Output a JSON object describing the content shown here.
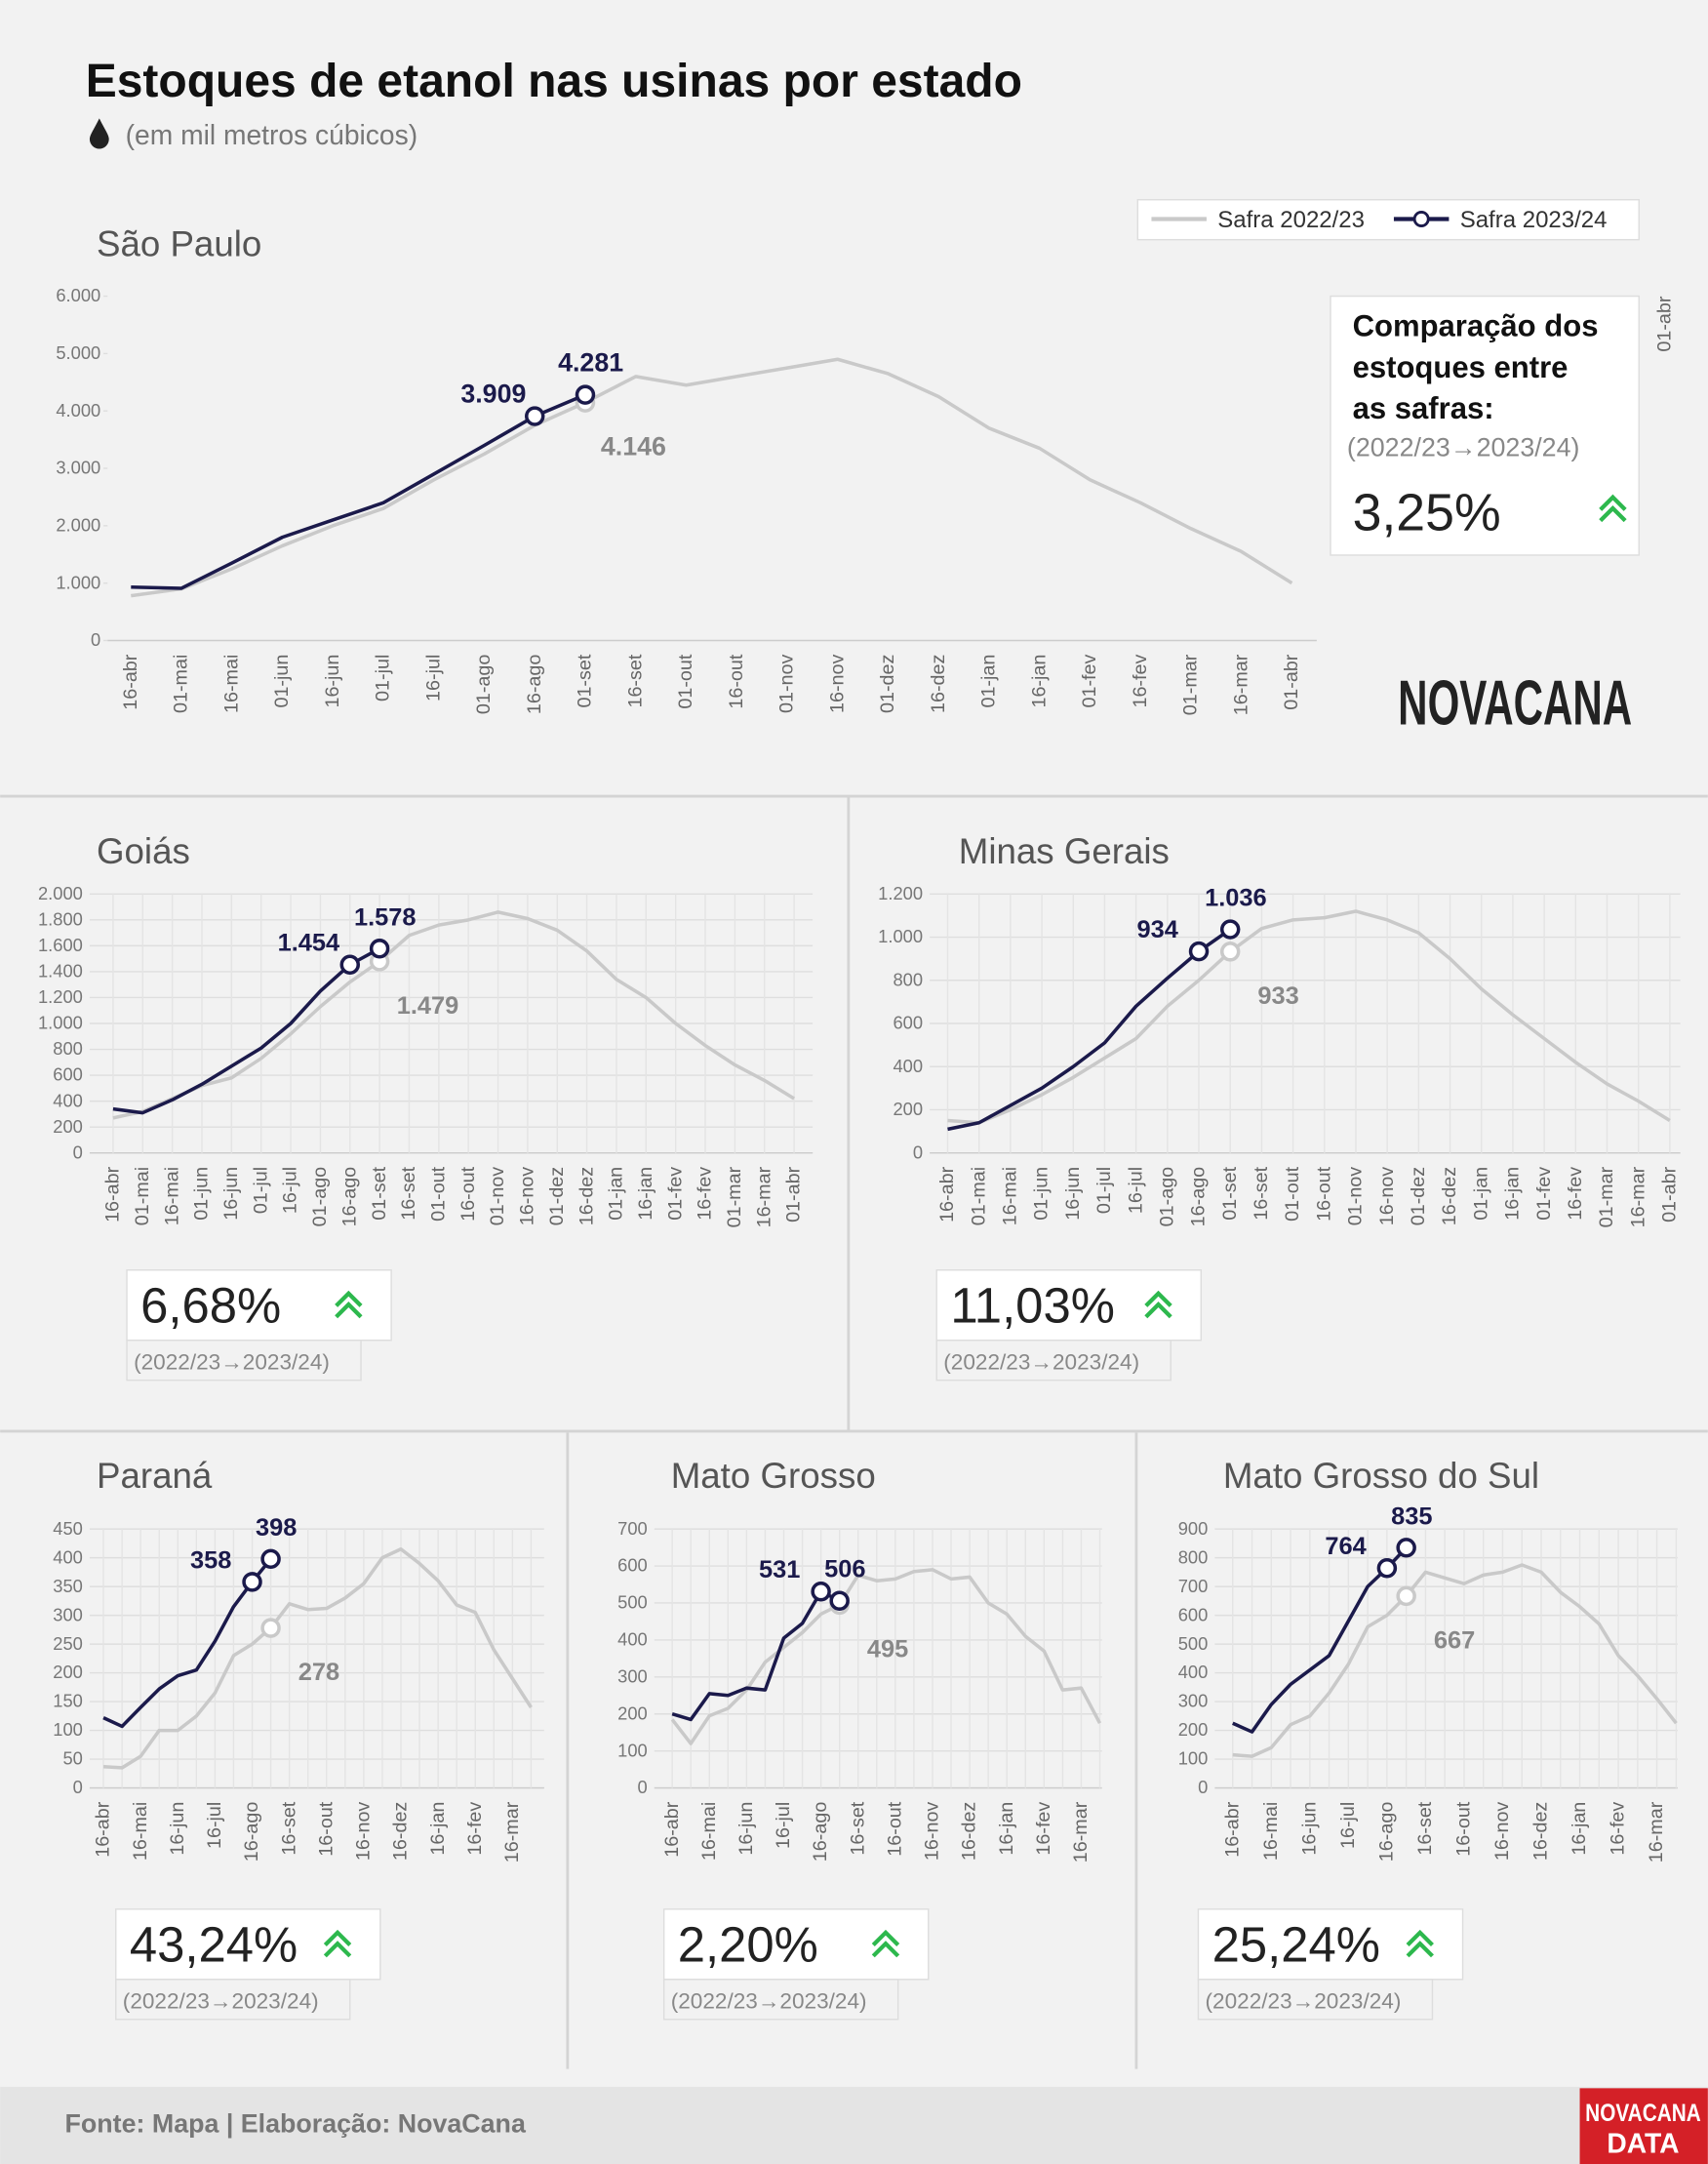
{
  "title": "Estoques de etanol nas usinas por estado",
  "subtitle": "(em mil metros cúbicos)",
  "logo": "NOVACANA",
  "badge": [
    "NOVACANA",
    "DATA"
  ],
  "footer": "Fonte: Mapa | Elaboração: NovaCana",
  "chart_data": [
    {
      "type": "line",
      "title": "São Paulo",
      "comparison_title": [
        "Comparação dos",
        "estoques entre",
        "as safras:"
      ],
      "period": "(2022/23→2023/24)",
      "change": {
        "value": 3.25,
        "label": "3,25%"
      },
      "side_label": "01-abr",
      "grid": false,
      "categories": [
        "16-abr",
        "01-mai",
        "16-mai",
        "01-jun",
        "16-jun",
        "01-jul",
        "16-jul",
        "01-ago",
        "16-ago",
        "01-set",
        "16-set",
        "01-out",
        "16-out",
        "01-nov",
        "16-nov",
        "01-dez",
        "16-dez",
        "01-jan",
        "16-jan",
        "01-fev",
        "16-fev",
        "01-mar",
        "16-mar",
        "01-abr"
      ],
      "ylim": [
        0,
        6000
      ],
      "yticks": [
        0,
        {
          "value": 1000,
          "label": "1.000"
        },
        {
          "value": 2000,
          "label": "2.000"
        },
        {
          "value": 3000,
          "label": "3.000"
        },
        {
          "value": 4000,
          "label": "4.000"
        },
        {
          "value": 5000,
          "label": "5.000"
        },
        {
          "value": 6000,
          "label": "6.000"
        }
      ],
      "series": [
        {
          "name": "Safra 2022/23",
          "color": "#c9c9c9",
          "values": [
            780,
            900,
            1250,
            1650,
            2000,
            2300,
            2800,
            3250,
            3750,
            4146,
            4600,
            4450,
            4600,
            4750,
            4900,
            4650,
            4250,
            3700,
            3350,
            2800,
            2400,
            1950,
            1550,
            1000
          ],
          "value_labels": [
            null,
            null,
            null,
            null,
            null,
            null,
            null,
            null,
            null,
            "4.146",
            null,
            null,
            null,
            null,
            null,
            null,
            null,
            null,
            null,
            null,
            null,
            null,
            null,
            null
          ]
        },
        {
          "name": "Safra 2023/24",
          "color": "#1b1a4b",
          "values": [
            930,
            910,
            1350,
            1800,
            2100,
            2400,
            2900,
            3400,
            3909,
            4281,
            null,
            null,
            null,
            null,
            null,
            null,
            null,
            null,
            null,
            null,
            null,
            null,
            null,
            null
          ],
          "value_labels": [
            null,
            null,
            null,
            null,
            null,
            null,
            null,
            null,
            "3.909",
            "4.281",
            null,
            null,
            null,
            null,
            null,
            null,
            null,
            null,
            null,
            null,
            null,
            null,
            null,
            null
          ]
        }
      ]
    },
    {
      "type": "line",
      "title": "Goiás",
      "period": "(2022/23→2023/24)",
      "change": {
        "value": 6.68,
        "label": "6,68%"
      },
      "grid": true,
      "categories": [
        "16-abr",
        "01-mai",
        "16-mai",
        "01-jun",
        "16-jun",
        "01-jul",
        "16-jul",
        "01-ago",
        "16-ago",
        "01-set",
        "16-set",
        "01-out",
        "16-out",
        "01-nov",
        "16-nov",
        "01-dez",
        "16-dez",
        "01-jan",
        "16-jan",
        "01-fev",
        "16-fev",
        "01-mar",
        "16-mar",
        "01-abr"
      ],
      "ylim": [
        0,
        2000
      ],
      "yticks": [
        0,
        200,
        400,
        600,
        800,
        {
          "value": 1000,
          "label": "1.000"
        },
        {
          "value": 1200,
          "label": "1.200"
        },
        {
          "value": 1400,
          "label": "1.400"
        },
        {
          "value": 1600,
          "label": "1.600"
        },
        {
          "value": 1800,
          "label": "1.800"
        },
        {
          "value": 2000,
          "label": "2.000"
        }
      ],
      "series": [
        {
          "name": "Safra 2022/23",
          "color": "#c9c9c9",
          "values": [
            270,
            320,
            420,
            520,
            580,
            730,
            920,
            1130,
            1320,
            1479,
            1680,
            1760,
            1800,
            1860,
            1810,
            1720,
            1560,
            1340,
            1200,
            1000,
            830,
            680,
            560,
            420
          ],
          "value_labels": [
            null,
            null,
            null,
            null,
            null,
            null,
            null,
            null,
            null,
            "1.479",
            null,
            null,
            null,
            null,
            null,
            null,
            null,
            null,
            null,
            null,
            null,
            null,
            null,
            null
          ]
        },
        {
          "name": "Safra 2023/24",
          "color": "#1b1a4b",
          "values": [
            340,
            310,
            410,
            530,
            670,
            810,
            1000,
            1250,
            1454,
            1578,
            null,
            null,
            null,
            null,
            null,
            null,
            null,
            null,
            null,
            null,
            null,
            null,
            null,
            null
          ],
          "value_labels": [
            null,
            null,
            null,
            null,
            null,
            null,
            null,
            null,
            "1.454",
            "1.578",
            null,
            null,
            null,
            null,
            null,
            null,
            null,
            null,
            null,
            null,
            null,
            null,
            null,
            null
          ]
        }
      ]
    },
    {
      "type": "line",
      "title": "Minas Gerais",
      "period": "(2022/23→2023/24)",
      "change": {
        "value": 11.03,
        "label": "11,03%"
      },
      "grid": true,
      "categories": [
        "16-abr",
        "01-mai",
        "16-mai",
        "01-jun",
        "16-jun",
        "01-jul",
        "16-jul",
        "01-ago",
        "16-ago",
        "01-set",
        "16-set",
        "01-out",
        "16-out",
        "01-nov",
        "16-nov",
        "01-dez",
        "16-dez",
        "01-jan",
        "16-jan",
        "01-fev",
        "16-fev",
        "01-mar",
        "16-mar",
        "01-abr"
      ],
      "ylim": [
        0,
        1200
      ],
      "yticks": [
        0,
        200,
        400,
        600,
        800,
        {
          "value": 1000,
          "label": "1.000"
        },
        {
          "value": 1200,
          "label": "1.200"
        }
      ],
      "series": [
        {
          "name": "Safra 2022/23",
          "color": "#c9c9c9",
          "values": [
            150,
            140,
            200,
            270,
            350,
            440,
            530,
            680,
            800,
            933,
            1040,
            1080,
            1090,
            1120,
            1080,
            1020,
            900,
            760,
            640,
            530,
            420,
            320,
            240,
            150
          ],
          "value_labels": [
            null,
            null,
            null,
            null,
            null,
            null,
            null,
            null,
            null,
            "933",
            null,
            null,
            null,
            null,
            null,
            null,
            null,
            null,
            null,
            null,
            null,
            null,
            null,
            null
          ]
        },
        {
          "name": "Safra 2023/24",
          "color": "#1b1a4b",
          "values": [
            110,
            140,
            220,
            300,
            400,
            510,
            680,
            810,
            934,
            1036,
            null,
            null,
            null,
            null,
            null,
            null,
            null,
            null,
            null,
            null,
            null,
            null,
            null,
            null
          ],
          "value_labels": [
            null,
            null,
            null,
            null,
            null,
            null,
            null,
            null,
            "934",
            "1.036",
            null,
            null,
            null,
            null,
            null,
            null,
            null,
            null,
            null,
            null,
            null,
            null,
            null,
            null
          ]
        }
      ]
    },
    {
      "type": "line",
      "title": "Paraná",
      "period": "(2022/23→2023/24)",
      "change": {
        "value": 43.24,
        "label": "43,24%"
      },
      "grid": true,
      "categories": [
        "16-abr",
        null,
        "16-mai",
        null,
        "16-jun",
        null,
        "16-jul",
        null,
        "16-ago",
        null,
        "16-set",
        null,
        "16-out",
        null,
        "16-nov",
        null,
        "16-dez",
        null,
        "16-jan",
        null,
        "16-fev",
        null,
        "16-mar",
        null
      ],
      "ylim": [
        0,
        450
      ],
      "yticks": [
        0,
        50,
        100,
        150,
        200,
        250,
        300,
        350,
        400,
        450
      ],
      "series": [
        {
          "name": "Safra 2022/23",
          "color": "#c9c9c9",
          "values": [
            37,
            35,
            55,
            100,
            100,
            125,
            165,
            230,
            250,
            278,
            320,
            310,
            312,
            330,
            355,
            400,
            415,
            390,
            360,
            318,
            305,
            240,
            190,
            140
          ],
          "value_labels": [
            null,
            null,
            null,
            null,
            null,
            null,
            null,
            null,
            null,
            "278",
            null,
            null,
            null,
            null,
            null,
            null,
            null,
            null,
            null,
            null,
            null,
            null,
            null,
            null
          ]
        },
        {
          "name": "Safra 2023/24",
          "color": "#1b1a4b",
          "values": [
            122,
            107,
            140,
            172,
            195,
            205,
            255,
            315,
            358,
            398,
            null,
            null,
            null,
            null,
            null,
            null,
            null,
            null,
            null,
            null,
            null,
            null,
            null,
            null
          ],
          "value_labels": [
            null,
            null,
            null,
            null,
            null,
            null,
            null,
            null,
            "358",
            "398",
            null,
            null,
            null,
            null,
            null,
            null,
            null,
            null,
            null,
            null,
            null,
            null,
            null,
            null
          ]
        }
      ]
    },
    {
      "type": "line",
      "title": "Mato Grosso",
      "period": "(2022/23→2023/24)",
      "change": {
        "value": 2.2,
        "label": "2,20%"
      },
      "grid": true,
      "categories": [
        "16-abr",
        null,
        "16-mai",
        null,
        "16-jun",
        null,
        "16-jul",
        null,
        "16-ago",
        null,
        "16-set",
        null,
        "16-out",
        null,
        "16-nov",
        null,
        "16-dez",
        null,
        "16-jan",
        null,
        "16-fev",
        null,
        "16-mar",
        null
      ],
      "ylim": [
        0,
        700
      ],
      "yticks": [
        0,
        100,
        200,
        300,
        400,
        500,
        600,
        700
      ],
      "series": [
        {
          "name": "Safra 2022/23",
          "color": "#c9c9c9",
          "values": [
            185,
            120,
            195,
            215,
            265,
            340,
            380,
            420,
            470,
            495,
            575,
            560,
            565,
            585,
            590,
            565,
            570,
            500,
            470,
            410,
            370,
            265,
            270,
            175
          ],
          "value_labels": [
            null,
            null,
            null,
            null,
            null,
            null,
            null,
            null,
            null,
            "495",
            null,
            null,
            null,
            null,
            null,
            null,
            null,
            null,
            null,
            null,
            null,
            null,
            null,
            null
          ]
        },
        {
          "name": "Safra 2023/24",
          "color": "#1b1a4b",
          "values": [
            200,
            185,
            255,
            250,
            270,
            265,
            405,
            445,
            531,
            506,
            null,
            null,
            null,
            null,
            null,
            null,
            null,
            null,
            null,
            null,
            null,
            null,
            null,
            null
          ],
          "value_labels": [
            null,
            null,
            null,
            null,
            null,
            null,
            null,
            null,
            "531",
            "506",
            null,
            null,
            null,
            null,
            null,
            null,
            null,
            null,
            null,
            null,
            null,
            null,
            null,
            null
          ]
        }
      ]
    },
    {
      "type": "line",
      "title": "Mato Grosso do Sul",
      "period": "(2022/23→2023/24)",
      "change": {
        "value": 25.24,
        "label": "25,24%"
      },
      "grid": true,
      "categories": [
        "16-abr",
        null,
        "16-mai",
        null,
        "16-jun",
        null,
        "16-jul",
        null,
        "16-ago",
        null,
        "16-set",
        null,
        "16-out",
        null,
        "16-nov",
        null,
        "16-dez",
        null,
        "16-jan",
        null,
        "16-fev",
        null,
        "16-mar",
        null
      ],
      "ylim": [
        0,
        900
      ],
      "yticks": [
        0,
        100,
        200,
        300,
        400,
        500,
        600,
        700,
        800,
        900
      ],
      "series": [
        {
          "name": "Safra 2022/23",
          "color": "#c9c9c9",
          "values": [
            115,
            110,
            140,
            220,
            250,
            330,
            430,
            560,
            600,
            667,
            750,
            730,
            710,
            740,
            750,
            775,
            750,
            680,
            630,
            570,
            460,
            390,
            310,
            225
          ],
          "value_labels": [
            null,
            null,
            null,
            null,
            null,
            null,
            null,
            null,
            null,
            "667",
            null,
            null,
            null,
            null,
            null,
            null,
            null,
            null,
            null,
            null,
            null,
            null,
            null,
            null
          ]
        },
        {
          "name": "Safra 2023/24",
          "color": "#1b1a4b",
          "values": [
            225,
            195,
            290,
            360,
            410,
            460,
            580,
            700,
            764,
            835,
            null,
            null,
            null,
            null,
            null,
            null,
            null,
            null,
            null,
            null,
            null,
            null,
            null,
            null
          ],
          "value_labels": [
            null,
            null,
            null,
            null,
            null,
            null,
            null,
            null,
            "764",
            "835",
            null,
            null,
            null,
            null,
            null,
            null,
            null,
            null,
            null,
            null,
            null,
            null,
            null,
            null
          ]
        }
      ]
    }
  ]
}
